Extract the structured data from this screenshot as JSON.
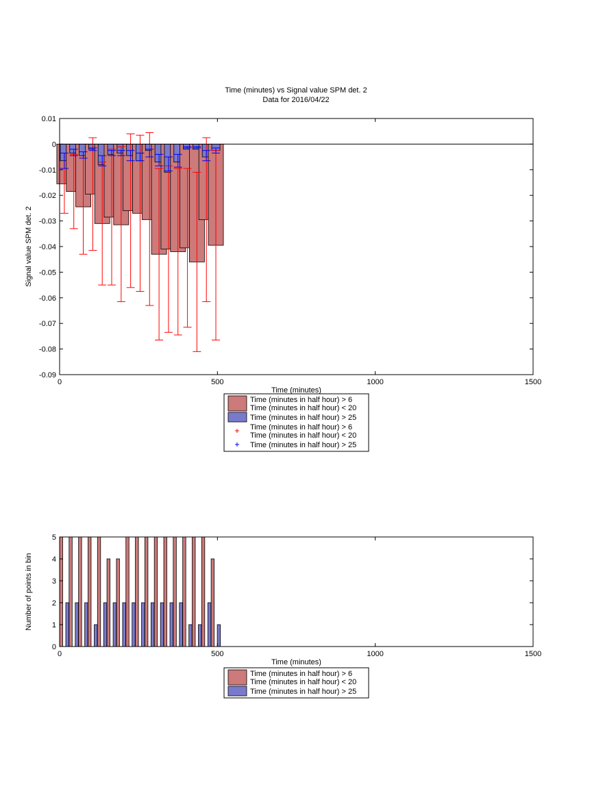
{
  "figure": {
    "title_line1": "Time (minutes) vs Signal value SPM det. 2",
    "title_line2": "Data for 2016/04/22"
  },
  "chart_data": [
    {
      "type": "bar",
      "xlabel": "Time (minutes)",
      "ylabel": "Signal value SPM det. 2",
      "xlim": [
        0,
        1500
      ],
      "ylim": [
        -0.09,
        0.01
      ],
      "xticks": [
        "0",
        "500",
        "1000",
        "1500"
      ],
      "yticks": [
        "0.01",
        "0",
        "-0.01",
        "-0.02",
        "-0.03",
        "-0.04",
        "-0.05",
        "-0.06",
        "-0.07",
        "-0.08",
        "-0.09"
      ],
      "x": [
        15,
        45,
        75,
        105,
        135,
        165,
        195,
        225,
        255,
        285,
        315,
        345,
        375,
        405,
        435,
        465,
        495
      ],
      "series": [
        {
          "name": "Time (minutes in half hour) > 6\nTime (minutes in half hour) < 20",
          "color": "#cc7a7a",
          "values": [
            -0.0155,
            -0.0185,
            -0.0245,
            -0.0195,
            -0.031,
            -0.0285,
            -0.0315,
            -0.026,
            -0.027,
            -0.0295,
            -0.043,
            -0.041,
            -0.042,
            -0.0405,
            -0.046,
            -0.0295,
            -0.0395
          ],
          "err_low": [
            -0.027,
            -0.033,
            -0.043,
            -0.0415,
            -0.055,
            -0.055,
            -0.0615,
            -0.056,
            -0.0575,
            -0.063,
            -0.0765,
            -0.0735,
            -0.0745,
            -0.0715,
            -0.081,
            -0.0615,
            -0.0765
          ],
          "err_high": [
            -0.0035,
            -0.004,
            -0.0055,
            0.0025,
            -0.007,
            -0.002,
            -0.001,
            0.004,
            0.0035,
            0.0045,
            -0.0095,
            -0.0085,
            -0.0095,
            -0.0095,
            -0.011,
            0.0025,
            -0.0025
          ]
        },
        {
          "name": "Time (minutes in half hour) > 25",
          "color": "#7a7acc",
          "values": [
            -0.0065,
            -0.0035,
            -0.0045,
            -0.002,
            -0.008,
            -0.004,
            -0.0035,
            -0.0045,
            -0.0065,
            -0.0025,
            -0.007,
            -0.011,
            -0.007,
            -0.002,
            -0.002,
            -0.005,
            -0.0025
          ],
          "err_low": [
            -0.0095,
            -0.0045,
            -0.0055,
            -0.0025,
            -0.0085,
            -0.0045,
            -0.0045,
            -0.0065,
            -0.0065,
            -0.005,
            -0.0085,
            -0.0105,
            -0.009,
            -0.0015,
            -0.0015,
            -0.0065,
            -0.0035
          ],
          "err_high": [
            -0.0035,
            -0.002,
            -0.003,
            -0.0015,
            -0.0045,
            -0.0025,
            -0.0025,
            -0.0025,
            -0.0035,
            -0.002,
            -0.004,
            -0.005,
            -0.004,
            -0.001,
            -0.001,
            -0.0025,
            -0.0015
          ]
        }
      ],
      "legend": [
        {
          "kind": "patch",
          "color": "#cc7a7a",
          "line1": "Time (minutes in half hour) > 6",
          "line2": "Time (minutes in half hour) < 20"
        },
        {
          "kind": "patch",
          "color": "#7a7acc",
          "line1": "Time (minutes in half hour) > 25",
          "line2": ""
        },
        {
          "kind": "marker",
          "color": "#ff0000",
          "line1": "Time (minutes in half hour) > 6",
          "line2": "Time (minutes in half hour) < 20"
        },
        {
          "kind": "marker",
          "color": "#0000ff",
          "line1": "Time (minutes in half hour) > 25",
          "line2": ""
        }
      ]
    },
    {
      "type": "bar",
      "xlabel": "Time (minutes)",
      "ylabel": "Number of points in bin",
      "xlim": [
        0,
        1500
      ],
      "ylim": [
        0,
        5
      ],
      "xticks": [
        "0",
        "500",
        "1000",
        "1500"
      ],
      "yticks": [
        "5",
        "4",
        "3",
        "2",
        "1",
        "0"
      ],
      "x": [
        0,
        30,
        60,
        90,
        120,
        150,
        180,
        210,
        240,
        270,
        300,
        330,
        360,
        390,
        420,
        450,
        480
      ],
      "series": [
        {
          "name": "Time (minutes in half hour) > 6\nTime (minutes in half hour) < 20",
          "color": "#cc7a7a",
          "values": [
            5,
            5,
            5,
            5,
            5,
            4,
            4,
            5,
            5,
            5,
            5,
            5,
            5,
            5,
            5,
            5,
            4
          ]
        },
        {
          "name": "Time (minutes in half hour) > 25",
          "color": "#7a7acc",
          "values": [
            2,
            2,
            2,
            1,
            2,
            2,
            2,
            2,
            2,
            2,
            2,
            2,
            2,
            1,
            1,
            2,
            1
          ]
        }
      ],
      "legend": [
        {
          "kind": "patch",
          "color": "#cc7a7a",
          "line1": "Time (minutes in half hour) > 6",
          "line2": "Time (minutes in half hour) < 20"
        },
        {
          "kind": "patch",
          "color": "#7a7acc",
          "line1": "Time (minutes in half hour) > 25",
          "line2": ""
        }
      ]
    }
  ]
}
